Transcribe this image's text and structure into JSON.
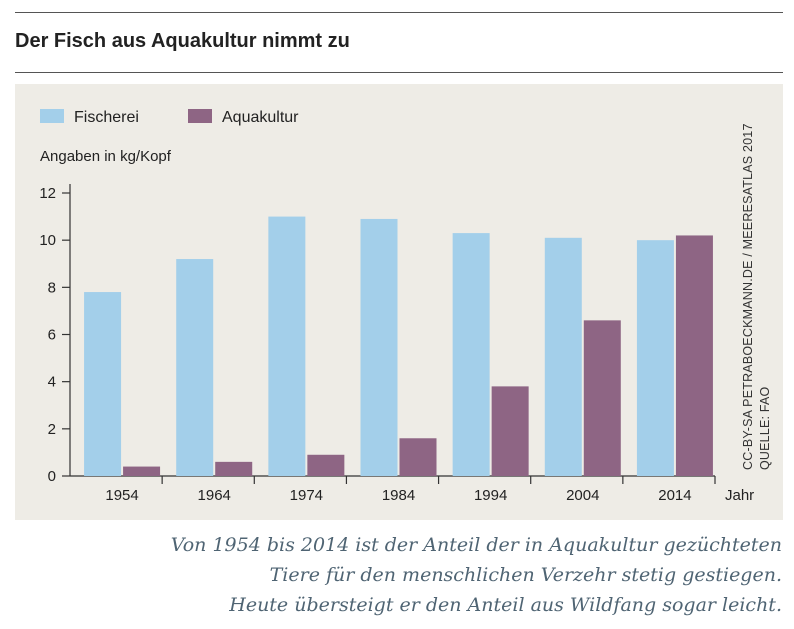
{
  "title": "Der Fisch aus Aquakultur nimmt zu",
  "credit": {
    "line1": "CC-BY-SA PETRABOECKMANN.DE / MEERESATLAS 2017",
    "line2": "QUELLE: FAO"
  },
  "caption": {
    "line1": "Von 1954 bis 2014 ist der Anteil der in Aquakultur gezüchteten",
    "line2": "Tiere für den menschlichen Verzehr stetig gestiegen.",
    "line3": "Heute übersteigt er den Anteil aus Wildfang sogar leicht."
  },
  "chart_data": {
    "type": "bar",
    "ylabel": "Angaben in kg/Kopf",
    "xlabel": "Jahr",
    "categories": [
      "1954",
      "1964",
      "1974",
      "1984",
      "1994",
      "2004",
      "2014"
    ],
    "series": [
      {
        "name": "Fischerei",
        "color": "#a3cfea",
        "values": [
          7.8,
          9.2,
          11.0,
          10.9,
          10.3,
          10.1,
          10.0
        ]
      },
      {
        "name": "Aquakultur",
        "color": "#8e6584",
        "values": [
          0.4,
          0.6,
          0.9,
          1.6,
          3.8,
          6.6,
          10.2
        ]
      }
    ],
    "ylim": [
      0,
      12
    ],
    "yticks": [
      0,
      2,
      4,
      6,
      8,
      10,
      12
    ],
    "grid": false,
    "legend": "top-left"
  }
}
